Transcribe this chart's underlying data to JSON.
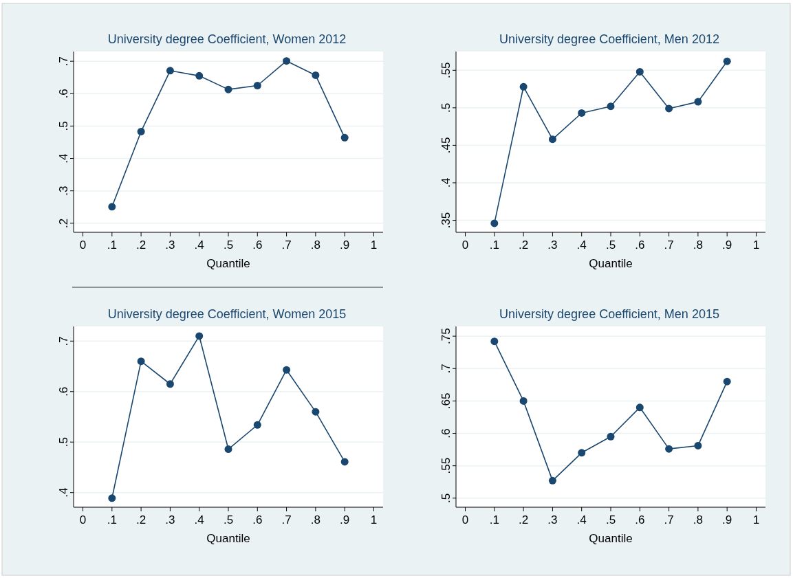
{
  "chart_data": [
    {
      "type": "line",
      "title": "University degree Coefficient, Women 2012",
      "xlabel": "Quantile",
      "x": [
        0.1,
        0.2,
        0.3,
        0.4,
        0.5,
        0.6,
        0.7,
        0.8,
        0.9
      ],
      "series": [
        {
          "color": "#1a476f",
          "values": [
            0.251,
            0.483,
            0.671,
            0.655,
            0.613,
            0.625,
            0.701,
            0.657,
            0.464
          ]
        }
      ],
      "xlim": [
        -0.032,
        1.032
      ],
      "ylim": [
        0.172,
        0.73
      ],
      "xticks": [
        {
          "value": 0,
          "label": "0"
        },
        {
          "value": 0.1,
          "label": ".1"
        },
        {
          "value": 0.2,
          "label": ".2"
        },
        {
          "value": 0.3,
          "label": ".3"
        },
        {
          "value": 0.4,
          "label": ".4"
        },
        {
          "value": 0.5,
          "label": ".5"
        },
        {
          "value": 0.6,
          "label": ".6"
        },
        {
          "value": 0.7,
          "label": ".7"
        },
        {
          "value": 0.8,
          "label": ".8"
        },
        {
          "value": 0.9,
          "label": ".9"
        },
        {
          "value": 1,
          "label": "1"
        }
      ],
      "yticks": [
        {
          "value": 0.2,
          "label": ".2"
        },
        {
          "value": 0.3,
          "label": ".3"
        },
        {
          "value": 0.4,
          "label": ".4"
        },
        {
          "value": 0.5,
          "label": ".5"
        },
        {
          "value": 0.6,
          "label": ".6"
        },
        {
          "value": 0.7,
          "label": ".7"
        }
      ],
      "grid": "y",
      "marker": "circle"
    },
    {
      "type": "line",
      "title": "University degree Coefficient, Men 2012",
      "xlabel": "Quantile",
      "x": [
        0.1,
        0.2,
        0.3,
        0.4,
        0.5,
        0.6,
        0.7,
        0.8,
        0.9
      ],
      "series": [
        {
          "color": "#1a476f",
          "values": [
            0.346,
            0.528,
            0.458,
            0.493,
            0.502,
            0.548,
            0.499,
            0.508,
            0.562
          ]
        }
      ],
      "xlim": [
        -0.032,
        1.032
      ],
      "ylim": [
        0.334,
        0.575
      ],
      "xticks": [
        {
          "value": 0,
          "label": "0"
        },
        {
          "value": 0.1,
          "label": ".1"
        },
        {
          "value": 0.2,
          "label": ".2"
        },
        {
          "value": 0.3,
          "label": ".3"
        },
        {
          "value": 0.4,
          "label": ".4"
        },
        {
          "value": 0.5,
          "label": ".5"
        },
        {
          "value": 0.6,
          "label": ".6"
        },
        {
          "value": 0.7,
          "label": ".7"
        },
        {
          "value": 0.8,
          "label": ".8"
        },
        {
          "value": 0.9,
          "label": ".9"
        },
        {
          "value": 1,
          "label": "1"
        }
      ],
      "yticks": [
        {
          "value": 0.35,
          "label": ".35"
        },
        {
          "value": 0.4,
          "label": ".4"
        },
        {
          "value": 0.45,
          "label": ".45"
        },
        {
          "value": 0.5,
          "label": ".5"
        },
        {
          "value": 0.55,
          "label": ".55"
        }
      ],
      "grid": "y",
      "marker": "circle"
    },
    {
      "type": "line",
      "title": "University degree Coefficient, Women 2015",
      "xlabel": "Quantile",
      "x": [
        0.1,
        0.2,
        0.3,
        0.4,
        0.5,
        0.6,
        0.7,
        0.8,
        0.9
      ],
      "series": [
        {
          "color": "#1a476f",
          "values": [
            0.389,
            0.66,
            0.615,
            0.71,
            0.486,
            0.534,
            0.643,
            0.56,
            0.461
          ]
        }
      ],
      "xlim": [
        -0.032,
        1.032
      ],
      "ylim": [
        0.371,
        0.729
      ],
      "xticks": [
        {
          "value": 0,
          "label": "0"
        },
        {
          "value": 0.1,
          "label": ".1"
        },
        {
          "value": 0.2,
          "label": ".2"
        },
        {
          "value": 0.3,
          "label": ".3"
        },
        {
          "value": 0.4,
          "label": ".4"
        },
        {
          "value": 0.5,
          "label": ".5"
        },
        {
          "value": 0.6,
          "label": ".6"
        },
        {
          "value": 0.7,
          "label": ".7"
        },
        {
          "value": 0.8,
          "label": ".8"
        },
        {
          "value": 0.9,
          "label": ".9"
        },
        {
          "value": 1,
          "label": "1"
        }
      ],
      "yticks": [
        {
          "value": 0.4,
          "label": ".4"
        },
        {
          "value": 0.5,
          "label": ".5"
        },
        {
          "value": 0.6,
          "label": ".6"
        },
        {
          "value": 0.7,
          "label": ".7"
        }
      ],
      "grid": "y",
      "marker": "circle"
    },
    {
      "type": "line",
      "title": "University degree Coefficient, Men 2015",
      "xlabel": "Quantile",
      "x": [
        0.1,
        0.2,
        0.3,
        0.4,
        0.5,
        0.6,
        0.7,
        0.8,
        0.9
      ],
      "series": [
        {
          "color": "#1a476f",
          "values": [
            0.742,
            0.65,
            0.527,
            0.57,
            0.595,
            0.64,
            0.576,
            0.581,
            0.68
          ]
        }
      ],
      "xlim": [
        -0.032,
        1.032
      ],
      "ylim": [
        0.486,
        0.765
      ],
      "xticks": [
        {
          "value": 0,
          "label": "0"
        },
        {
          "value": 0.1,
          "label": ".1"
        },
        {
          "value": 0.2,
          "label": ".2"
        },
        {
          "value": 0.3,
          "label": ".3"
        },
        {
          "value": 0.4,
          "label": ".4"
        },
        {
          "value": 0.5,
          "label": ".5"
        },
        {
          "value": 0.6,
          "label": ".6"
        },
        {
          "value": 0.7,
          "label": ".7"
        },
        {
          "value": 0.8,
          "label": ".8"
        },
        {
          "value": 0.9,
          "label": ".9"
        },
        {
          "value": 1,
          "label": "1"
        }
      ],
      "yticks": [
        {
          "value": 0.5,
          "label": ".5"
        },
        {
          "value": 0.55,
          "label": ".55"
        },
        {
          "value": 0.6,
          "label": ".6"
        },
        {
          "value": 0.65,
          "label": ".65"
        },
        {
          "value": 0.7,
          "label": ".7"
        },
        {
          "value": 0.75,
          "label": ".75"
        }
      ],
      "grid": "y",
      "marker": "circle"
    }
  ]
}
